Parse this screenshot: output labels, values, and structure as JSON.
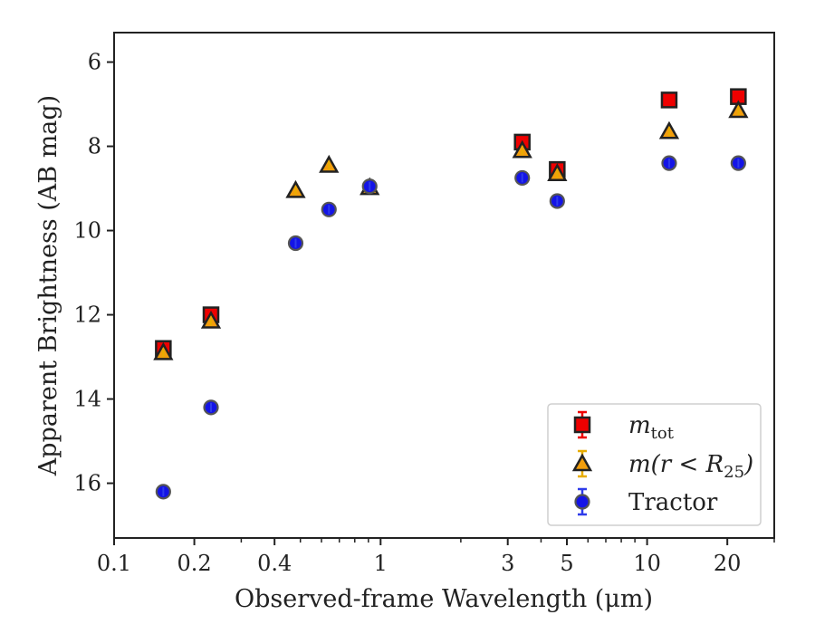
{
  "chart_data": {
    "type": "scatter",
    "xlabel": "Observed-frame Wavelength (μm)",
    "ylabel": "Apparent Brightness (AB mag)",
    "x_scale": "log",
    "xlim": [
      0.1,
      30
    ],
    "ylim": [
      17.3,
      5.3
    ],
    "y_inverted": true,
    "x_ticks": [
      {
        "value": 0.1,
        "label": "0.1"
      },
      {
        "value": 0.2,
        "label": "0.2"
      },
      {
        "value": 0.4,
        "label": "0.4"
      },
      {
        "value": 1,
        "label": "1"
      },
      {
        "value": 3,
        "label": "3"
      },
      {
        "value": 5,
        "label": "5"
      },
      {
        "value": 10,
        "label": "10"
      },
      {
        "value": 20,
        "label": "20"
      }
    ],
    "y_ticks": [
      {
        "value": 6,
        "label": "6"
      },
      {
        "value": 8,
        "label": "8"
      },
      {
        "value": 10,
        "label": "10"
      },
      {
        "value": 12,
        "label": "12"
      },
      {
        "value": 14,
        "label": "14"
      },
      {
        "value": 16,
        "label": "16"
      }
    ],
    "grid": false,
    "legend_position": "bottom-right",
    "series": [
      {
        "name": "m_tot",
        "legend_label": {
          "base": "m",
          "sub": "tot"
        },
        "marker": "square",
        "color": "#ee0000",
        "error_color": "#ee0000",
        "x": [
          0.153,
          0.231,
          3.4,
          4.6,
          12.1,
          22.0
        ],
        "y": [
          12.8,
          12.0,
          7.9,
          8.55,
          6.9,
          6.82
        ]
      },
      {
        "name": "m(r<R25)",
        "legend_label": {
          "base": "m(r < R",
          "sub": "25",
          "tail": ")"
        },
        "marker": "triangle",
        "color": "#f29e0c",
        "error_color": "#e8ad00",
        "x": [
          0.153,
          0.231,
          0.48,
          0.64,
          0.91,
          3.4,
          4.6,
          12.1,
          22.0
        ],
        "y": [
          12.9,
          12.15,
          9.05,
          8.45,
          8.98,
          8.1,
          8.65,
          7.65,
          7.15
        ]
      },
      {
        "name": "Tractor",
        "legend_label": {
          "base": "Tractor"
        },
        "marker": "circle",
        "color": "#1414e6",
        "error_color": "#2e3bea",
        "x": [
          0.153,
          0.231,
          0.48,
          0.64,
          0.91,
          3.4,
          4.6,
          12.1,
          22.0
        ],
        "y": [
          16.2,
          14.2,
          10.3,
          9.5,
          8.95,
          8.75,
          9.3,
          8.4,
          8.4
        ]
      }
    ]
  }
}
